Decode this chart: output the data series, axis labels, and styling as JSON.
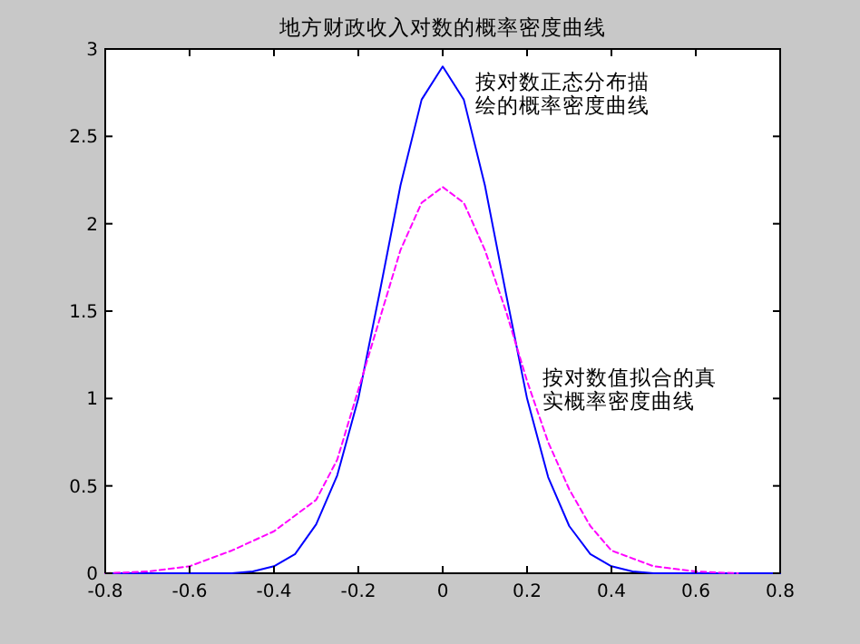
{
  "chart_data": {
    "type": "line",
    "title": "地方财政收入对数的概率密度曲线",
    "xlim": [
      -0.8,
      0.8
    ],
    "xticks": [
      -0.8,
      -0.6,
      -0.4,
      -0.2,
      0,
      0.2,
      0.4,
      0.6,
      0.8
    ],
    "ylim": [
      0,
      3
    ],
    "yticks": [
      0,
      0.5,
      1,
      1.5,
      2,
      2.5,
      3
    ],
    "series": [
      {
        "color": "#0000ff",
        "line_style": "solid",
        "x": [
          -0.8,
          -0.6,
          -0.5,
          -0.45,
          -0.4,
          -0.35,
          -0.3,
          -0.25,
          -0.2,
          -0.15,
          -0.1,
          -0.05,
          0,
          0.05,
          0.1,
          0.15,
          0.2,
          0.25,
          0.3,
          0.35,
          0.4,
          0.45,
          0.5,
          0.6,
          0.8
        ],
        "values": [
          0,
          0,
          0,
          0.01,
          0.04,
          0.11,
          0.28,
          0.56,
          1.0,
          1.6,
          2.22,
          2.71,
          2.9,
          2.71,
          2.22,
          1.6,
          1.0,
          0.55,
          0.27,
          0.11,
          0.04,
          0.01,
          0,
          0,
          0
        ]
      },
      {
        "color": "#ff00ff",
        "line_style": "dashed",
        "x": [
          -0.8,
          -0.7,
          -0.6,
          -0.5,
          -0.4,
          -0.3,
          -0.25,
          -0.2,
          -0.15,
          -0.1,
          -0.05,
          0,
          0.05,
          0.1,
          0.15,
          0.2,
          0.25,
          0.3,
          0.35,
          0.4,
          0.5,
          0.6,
          0.7
        ],
        "values": [
          0,
          0.01,
          0.04,
          0.13,
          0.24,
          0.42,
          0.65,
          1.05,
          1.45,
          1.85,
          2.12,
          2.21,
          2.12,
          1.85,
          1.5,
          1.1,
          0.75,
          0.48,
          0.27,
          0.13,
          0.04,
          0.01,
          0
        ]
      }
    ],
    "annotations": [
      "按对数正态分布描绘的概率密度曲线",
      "按对数值拟合的真实概率密度曲线"
    ]
  }
}
